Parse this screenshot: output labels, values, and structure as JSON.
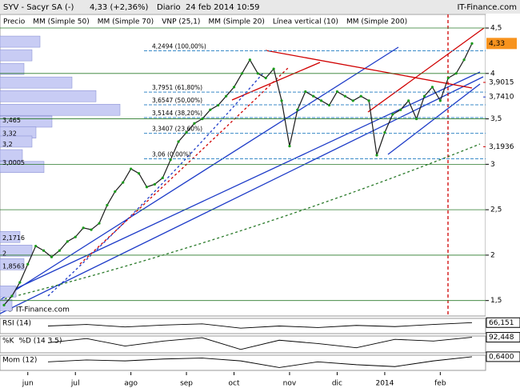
{
  "header": {
    "symbol": "SYV - Sacyr SA (-)",
    "quote": "4,33 (+2,36%)",
    "period": "Diario",
    "timestamp": "24 feb 2014 10:59",
    "brand": "IT-Finance.com"
  },
  "legend": [
    "Precio",
    "MM (Simple 50)",
    "MM (Simple 70)",
    "VNP (25,1)",
    "MM (Simple 20)",
    "Línea vertical (10)",
    "MM (Simple 200)"
  ],
  "watermark": "© IT-Finance.com",
  "chart_data": {
    "type": "line",
    "color": "#1a1a1a",
    "categories": [
      null,
      null,
      null,
      "jun",
      null,
      null,
      null,
      null,
      null,
      "jul",
      null,
      null,
      null,
      null,
      null,
      null,
      "ago",
      null,
      null,
      null,
      null,
      null,
      null,
      "sep",
      null,
      null,
      null,
      null,
      null,
      "oct",
      null,
      null,
      null,
      null,
      null,
      null,
      "nov",
      null,
      null,
      null,
      null,
      null,
      "dic",
      null,
      null,
      null,
      null,
      null,
      "2014",
      null,
      null,
      null,
      null,
      null,
      null,
      "feb",
      null,
      null,
      null,
      null
    ],
    "values": [
      1.45,
      1.55,
      1.7,
      1.9,
      2.1,
      2.05,
      1.98,
      2.05,
      2.15,
      2.2,
      2.3,
      2.28,
      2.35,
      2.55,
      2.7,
      2.8,
      2.95,
      2.9,
      2.75,
      2.78,
      2.85,
      3.05,
      3.25,
      3.35,
      3.45,
      3.5,
      3.6,
      3.65,
      3.75,
      3.85,
      4.0,
      4.15,
      4.0,
      3.95,
      4.05,
      3.7,
      3.2,
      3.6,
      3.8,
      3.75,
      3.7,
      3.65,
      3.8,
      3.75,
      3.7,
      3.75,
      3.7,
      3.1,
      3.35,
      3.55,
      3.6,
      3.7,
      3.5,
      3.75,
      3.85,
      3.7,
      3.95,
      4.0,
      4.15,
      4.33
    ],
    "ylim": [
      1.33,
      4.65
    ],
    "yticks": [
      {
        "value": 4.5,
        "label": "4,5"
      },
      4,
      {
        "value": 3.5,
        "label": "3,5"
      },
      3,
      {
        "value": 2.5,
        "label": "2,5"
      },
      2,
      {
        "value": 1.5,
        "label": "1,5"
      }
    ],
    "fib_levels": [
      {
        "value": 4.2494,
        "label": "4,2494 (100,00%)"
      },
      {
        "value": 3.7951,
        "label": "3,7951 (61,80%)"
      },
      {
        "value": 3.6547,
        "label": "3,6547 (50,00%)"
      },
      {
        "value": 3.5144,
        "label": "3,5144 (38,20%)"
      },
      {
        "value": 3.3407,
        "label": "3,3407 (23,60%)"
      },
      {
        "value": 3.06,
        "label": "3,06 (0,00%)"
      }
    ],
    "price_labels": [
      {
        "value": 4.33,
        "label": "4,33",
        "color": "#f7931e"
      },
      {
        "value": 3.9015,
        "label": "3,9015",
        "color": "#d00000"
      },
      {
        "value": 3.741,
        "label": "3,7410",
        "color": "#1e3cc8"
      },
      {
        "value": 3.1936,
        "label": "3,1936",
        "color": "#d00000"
      }
    ],
    "profile_labels": [
      {
        "value": 3.465,
        "label": "3,465"
      },
      {
        "value": 3.32,
        "label": "3,32"
      },
      {
        "value": 3.2,
        "label": "3,2"
      },
      {
        "value": 3.0005,
        "label": "3,0005"
      },
      {
        "value": 2.1716,
        "label": "2,1716"
      },
      {
        "value": 2,
        "label": "2"
      },
      {
        "value": 1.8563,
        "label": "1,8563"
      }
    ],
    "indicators": [
      {
        "name": "RSI (14)",
        "last": {
          "value": 66.151,
          "label": "66,151"
        },
        "ylim": [
          30,
          80
        ],
        "values": [
          55,
          60,
          52,
          58,
          62,
          48,
          55,
          50,
          57,
          53,
          60,
          66.151
        ]
      },
      {
        "name": "%K",
        "name2": "%D (14 3 5)",
        "last": {
          "value": 92.448,
          "label": "92,448"
        },
        "ylim": [
          0,
          100
        ],
        "values": [
          60,
          85,
          40,
          70,
          90,
          20,
          75,
          55,
          30,
          80,
          70,
          92.448
        ]
      },
      {
        "name": "Mom (12)",
        "last": {
          "value": 0.64,
          "label": "0,6400"
        },
        "ylim": [
          -0.8,
          0.8
        ],
        "values": [
          0.1,
          0.3,
          0.2,
          0.4,
          0.5,
          0.2,
          -0.5,
          0.1,
          -0.2,
          -0.4,
          0.2,
          0.64
        ]
      }
    ]
  }
}
